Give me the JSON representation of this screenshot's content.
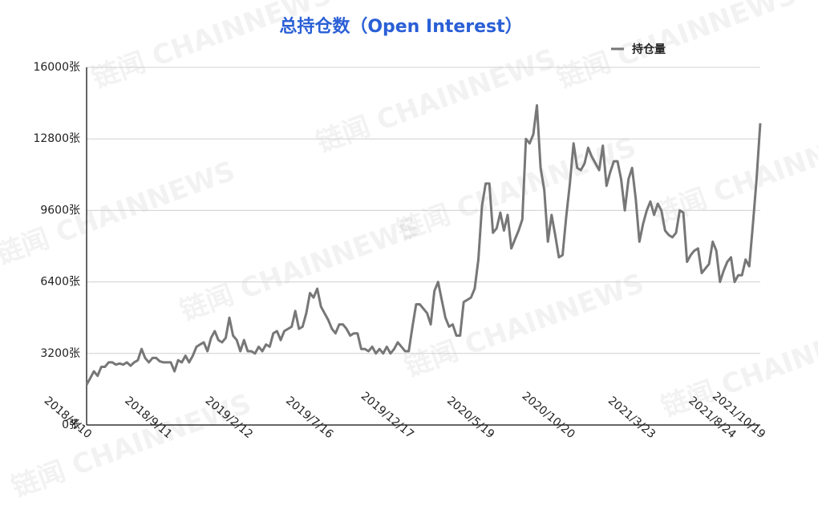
{
  "chart_data": {
    "type": "line",
    "title": "总持仓数（Open Interest）",
    "watermark": "链闻 CHAINNEWS",
    "legend": "top-right",
    "grid": true,
    "categories": [
      "2018/4/10",
      null,
      null,
      null,
      null,
      null,
      null,
      null,
      null,
      null,
      null,
      null,
      null,
      null,
      null,
      null,
      null,
      null,
      null,
      null,
      null,
      null,
      "2018/9/11",
      null,
      null,
      null,
      null,
      null,
      null,
      null,
      null,
      null,
      null,
      null,
      null,
      null,
      null,
      null,
      null,
      null,
      null,
      null,
      null,
      null,
      "2019/2/12",
      null,
      null,
      null,
      null,
      null,
      null,
      null,
      null,
      null,
      null,
      null,
      null,
      null,
      null,
      null,
      null,
      null,
      null,
      null,
      null,
      null,
      "2019/7/16",
      null,
      null,
      null,
      null,
      null,
      null,
      null,
      null,
      null,
      null,
      null,
      null,
      null,
      null,
      null,
      null,
      null,
      null,
      null,
      null,
      null,
      "2019/12/17",
      null,
      null,
      null,
      null,
      null,
      null,
      null,
      null,
      null,
      null,
      null,
      null,
      null,
      null,
      null,
      null,
      null,
      null,
      null,
      null,
      null,
      "2020/5/19",
      null,
      null,
      null,
      null,
      null,
      null,
      null,
      null,
      null,
      null,
      null,
      null,
      null,
      null,
      null,
      null,
      null,
      null,
      null,
      null,
      null,
      "2020/10/20",
      null,
      null,
      null,
      null,
      null,
      null,
      null,
      null,
      null,
      null,
      null,
      null,
      null,
      null,
      null,
      null,
      null,
      null,
      null,
      null,
      null,
      "2021/3/23",
      null,
      null,
      null,
      null,
      null,
      null,
      null,
      null,
      null,
      null,
      null,
      null,
      null,
      null,
      null,
      null,
      null,
      null,
      null,
      null,
      null,
      "2021/8/24",
      null,
      null,
      null,
      null,
      null,
      null,
      null,
      "2021/10/19"
    ],
    "series": [
      {
        "name": "持仓量",
        "color": "#777777",
        "values": [
          1800,
          2100,
          2400,
          2200,
          2600,
          2600,
          2800,
          2800,
          2700,
          2750,
          2700,
          2800,
          2650,
          2800,
          2900,
          3400,
          3000,
          2800,
          3000,
          3000,
          2850,
          2800,
          2800,
          2800,
          2400,
          2900,
          2800,
          3100,
          2800,
          3100,
          3500,
          3600,
          3700,
          3300,
          3900,
          4200,
          3800,
          3700,
          3900,
          4800,
          4000,
          3800,
          3300,
          3800,
          3300,
          3300,
          3200,
          3500,
          3300,
          3600,
          3500,
          4100,
          4200,
          3800,
          4200,
          4300,
          4400,
          5100,
          4300,
          4400,
          5000,
          5900,
          5700,
          6100,
          5300,
          5000,
          4700,
          4300,
          4100,
          4500,
          4500,
          4300,
          4000,
          4100,
          4100,
          3400,
          3400,
          3300,
          3500,
          3200,
          3400,
          3200,
          3500,
          3200,
          3400,
          3700,
          3500,
          3300,
          3300,
          4400,
          5400,
          5400,
          5200,
          5000,
          4500,
          6000,
          6400,
          5600,
          4800,
          4400,
          4500,
          4000,
          4000,
          5500,
          5600,
          5700,
          6100,
          7400,
          9800,
          10800,
          10800,
          8600,
          8800,
          9500,
          8700,
          9400,
          7900,
          8300,
          8700,
          9200,
          12800,
          12600,
          13000,
          14300,
          11500,
          10500,
          8200,
          9400,
          8500,
          7500,
          7600,
          9300,
          10800,
          12600,
          11500,
          11400,
          11700,
          12400,
          12000,
          11700,
          11400,
          12500,
          10700,
          11300,
          11800,
          11800,
          11000,
          9600,
          11000,
          11500,
          10100,
          8200,
          9000,
          9600,
          10000,
          9400,
          9900,
          9600,
          8700,
          8500,
          8400,
          8600,
          9600,
          9500,
          7300,
          7600,
          7800,
          7900,
          6800,
          7000,
          7200,
          8200,
          7800,
          6400,
          6900,
          7300,
          7500,
          6400,
          6700,
          6700,
          7400,
          7100,
          9000,
          11000,
          13500
        ]
      }
    ],
    "ylim": [
      0,
      16000
    ],
    "yticks": [
      {
        "value": 0,
        "label": "0张"
      },
      {
        "value": 3200,
        "label": "3200张"
      },
      {
        "value": 6400,
        "label": "6400张"
      },
      {
        "value": 9600,
        "label": "9600张"
      },
      {
        "value": 12800,
        "label": "12800张"
      },
      {
        "value": 16000,
        "label": "16000张"
      }
    ]
  }
}
